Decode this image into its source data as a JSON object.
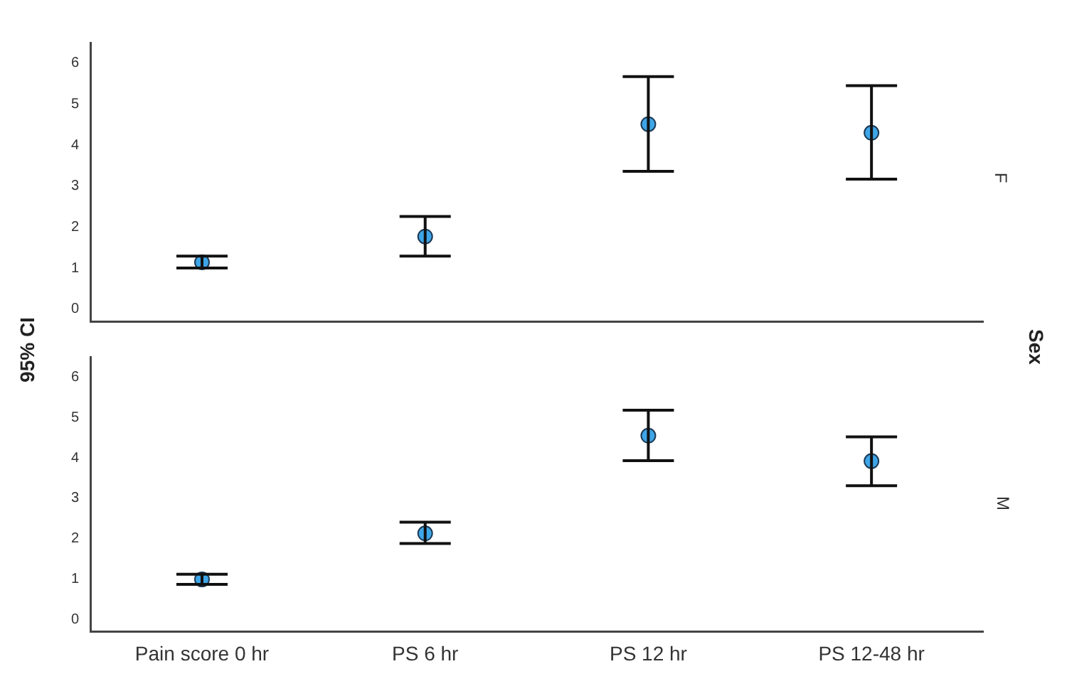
{
  "chart_data": [
    {
      "type": "scatter",
      "ylabel": "95% CI",
      "y2label": "F",
      "annotations": [
        "Sex"
      ],
      "categories": [
        null,
        null,
        null,
        null
      ],
      "series": [
        {
          "color": "#3ea6e8",
          "values": [
            1.14,
            1.77,
            4.51,
            4.3
          ],
          "errors": [
            [
              1.0,
              1.29
            ],
            [
              1.29,
              2.26
            ],
            [
              3.36,
              5.67
            ],
            [
              3.17,
              5.45
            ]
          ]
        }
      ],
      "ylim": [
        -0.3,
        6.5
      ],
      "yticks": [
        0,
        1,
        2,
        3,
        4,
        5,
        6
      ],
      "grid": false,
      "marker": "circle",
      "tick_labels": "y"
    },
    {
      "type": "scatter",
      "y2label": "M",
      "categories": [
        "Pain score 0 hr",
        "PS 6 hr",
        "PS 12 hr",
        "PS 12-48 hr"
      ],
      "series": [
        {
          "color": "#3ea6e8",
          "values": [
            0.99,
            2.13,
            4.55,
            3.92
          ],
          "errors": [
            [
              0.87,
              1.12
            ],
            [
              1.88,
              2.41
            ],
            [
              3.93,
              5.18
            ],
            [
              3.31,
              4.52
            ]
          ]
        }
      ],
      "ylim": [
        -0.3,
        6.5
      ],
      "yticks": [
        0,
        1,
        2,
        3,
        4,
        5,
        6
      ],
      "grid": false,
      "marker": "circle"
    }
  ]
}
